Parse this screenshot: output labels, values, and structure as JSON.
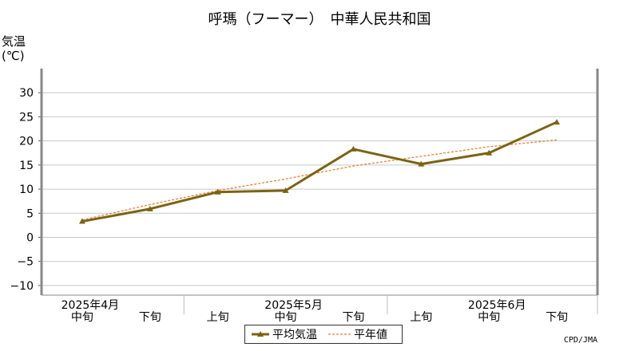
{
  "title": "呼瑪（フーマー）　中華人民共和国",
  "ylabel_line1": "気温",
  "ylabel_line2": "(℃)",
  "credit": "CPD/JMA",
  "colors": {
    "series": "#7b6411",
    "normal": "#e8803a",
    "grid": "#c8c8c8",
    "frame": "#888888"
  },
  "chart_data": {
    "type": "line",
    "ylim": [
      -12,
      35
    ],
    "yticks": [
      -10,
      -5,
      0,
      5,
      10,
      15,
      20,
      25,
      30
    ],
    "ytick_labels": [
      "−10",
      "−5",
      "0",
      "5",
      "10",
      "15",
      "20",
      "25",
      "30"
    ],
    "grid": true,
    "legend_position": "bottom-center",
    "x_categories": [
      "中旬",
      "下旬",
      "上旬",
      "中旬",
      "下旬",
      "上旬",
      "中旬",
      "下旬"
    ],
    "month_labels": [
      {
        "label": "2025年4月",
        "index": 0
      },
      {
        "label": "2025年5月",
        "index": 3
      },
      {
        "label": "2025年6月",
        "index": 6
      }
    ],
    "series": [
      {
        "name": "平均気温",
        "values": [
          3.3,
          5.9,
          9.4,
          9.7,
          18.3,
          15.2,
          17.5,
          23.9
        ]
      },
      {
        "name": "平年値",
        "values": [
          3.6,
          6.8,
          9.7,
          12.1,
          14.8,
          16.8,
          18.8,
          20.2
        ]
      }
    ]
  }
}
